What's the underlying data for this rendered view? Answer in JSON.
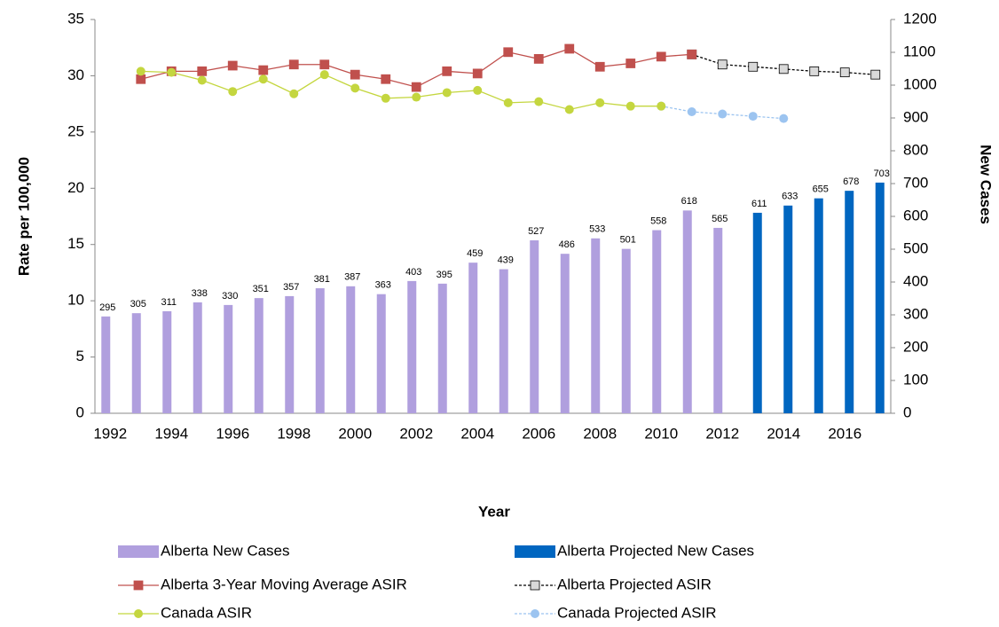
{
  "chart_data": {
    "type": "combo",
    "xlabel": "Year",
    "ylabel": "Rate per 100,000",
    "y2label": "New Cases",
    "categories": [
      "1992",
      null,
      "1994",
      null,
      "1996",
      null,
      "1998",
      null,
      "2000",
      null,
      "2002",
      null,
      "2004",
      null,
      "2006",
      null,
      "2008",
      null,
      "2010",
      null,
      "2012",
      null,
      "2014",
      null,
      "2016",
      null
    ],
    "ylim": [
      0,
      35
    ],
    "yticks": [
      0,
      5,
      10,
      15,
      20,
      25,
      30,
      35
    ],
    "y2lim": [
      0,
      1200
    ],
    "y2ticks": [
      0,
      100,
      200,
      300,
      400,
      500,
      600,
      700,
      800,
      900,
      1000,
      1100,
      1200
    ],
    "series": [
      {
        "name": "Alberta New Cases",
        "type": "bar",
        "axis": "y2",
        "color": "#b09fde",
        "values": [
          295,
          305,
          311,
          338,
          330,
          351,
          357,
          381,
          387,
          363,
          403,
          395,
          459,
          439,
          527,
          486,
          533,
          501,
          558,
          618,
          565,
          null,
          null,
          null,
          null,
          null
        ]
      },
      {
        "name": "Alberta Projected New Cases",
        "type": "bar",
        "axis": "y2",
        "color": "#0066c0",
        "values": [
          null,
          null,
          null,
          null,
          null,
          null,
          null,
          null,
          null,
          null,
          null,
          null,
          null,
          null,
          null,
          null,
          null,
          null,
          null,
          null,
          null,
          611,
          633,
          655,
          678,
          703
        ]
      },
      {
        "name": "Alberta 3-Year Moving Average ASIR",
        "type": "line",
        "color": "#c0504d",
        "marker": "square",
        "marker_color": "#c0504d",
        "dashed": false,
        "values": [
          null,
          29.7,
          30.4,
          30.4,
          30.9,
          30.5,
          31.0,
          31.0,
          30.1,
          29.7,
          29.0,
          30.4,
          30.2,
          32.1,
          31.5,
          32.4,
          30.8,
          31.1,
          31.7,
          31.9,
          null,
          null,
          null,
          null,
          null,
          null
        ]
      },
      {
        "name": "Alberta Projected ASIR",
        "type": "line",
        "color": "#000000",
        "marker": "square",
        "marker_color": "#d9d9d9",
        "dashed": true,
        "values": [
          null,
          null,
          null,
          null,
          null,
          null,
          null,
          null,
          null,
          null,
          null,
          null,
          null,
          null,
          null,
          null,
          null,
          null,
          null,
          31.9,
          31.0,
          30.8,
          30.6,
          30.4,
          30.3,
          30.1
        ]
      },
      {
        "name": "Canada ASIR",
        "type": "line",
        "color": "#c4d63f",
        "marker": "circle",
        "marker_color": "#c4d63f",
        "dashed": false,
        "values": [
          null,
          30.4,
          30.3,
          29.6,
          28.6,
          29.7,
          28.4,
          30.1,
          28.9,
          28.0,
          28.1,
          28.5,
          28.7,
          27.6,
          27.7,
          27.0,
          27.6,
          27.3,
          27.3,
          null,
          null,
          null,
          null,
          null,
          null,
          null
        ]
      },
      {
        "name": "Canada Projected ASIR",
        "type": "line",
        "color": "#9cc4f0",
        "marker": "circle",
        "marker_color": "#9cc4f0",
        "dashed": true,
        "values": [
          null,
          null,
          null,
          null,
          null,
          null,
          null,
          null,
          null,
          null,
          null,
          null,
          null,
          null,
          null,
          null,
          null,
          null,
          27.3,
          26.8,
          26.6,
          26.4,
          26.2,
          null,
          null,
          null
        ]
      }
    ]
  }
}
